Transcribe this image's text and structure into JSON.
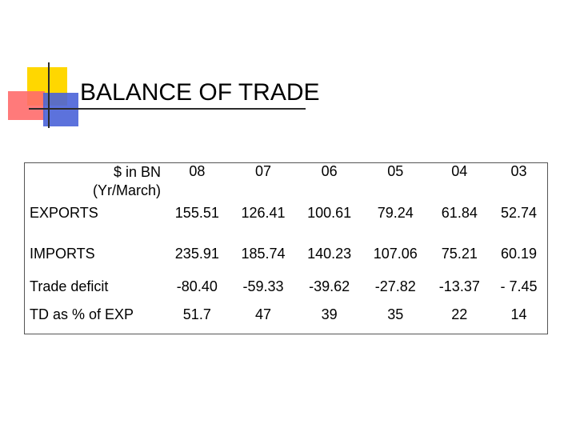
{
  "slide": {
    "title": "BALANCE OF TRADE"
  },
  "table": {
    "header_label_line1": "$ in BN",
    "header_label_line2": "(Yr/March)",
    "years": [
      "08",
      "07",
      "06",
      "05",
      "04",
      "03"
    ],
    "rows": [
      {
        "label": "EXPORTS",
        "values": [
          "155.51",
          "126.41",
          "100.61",
          "79.24",
          "61.84",
          "52.74"
        ]
      },
      {
        "label": "IMPORTS",
        "values": [
          "235.91",
          "185.74",
          "140.23",
          "107.06",
          "75.21",
          "60.19"
        ]
      },
      {
        "label": "Trade deficit",
        "values": [
          "-80.40",
          "-59.33",
          "-39.62",
          "-27.82",
          "-13.37",
          "- 7.45"
        ]
      },
      {
        "label": "TD as % of EXP",
        "values": [
          "51.7",
          "47",
          "39",
          "35",
          "22",
          "14"
        ]
      }
    ]
  },
  "colors": {
    "decor_yellow": "#ffd700",
    "decor_red": "#ff6b6b",
    "decor_blue": "#4a63d8",
    "rule": "#2b2b2b"
  }
}
